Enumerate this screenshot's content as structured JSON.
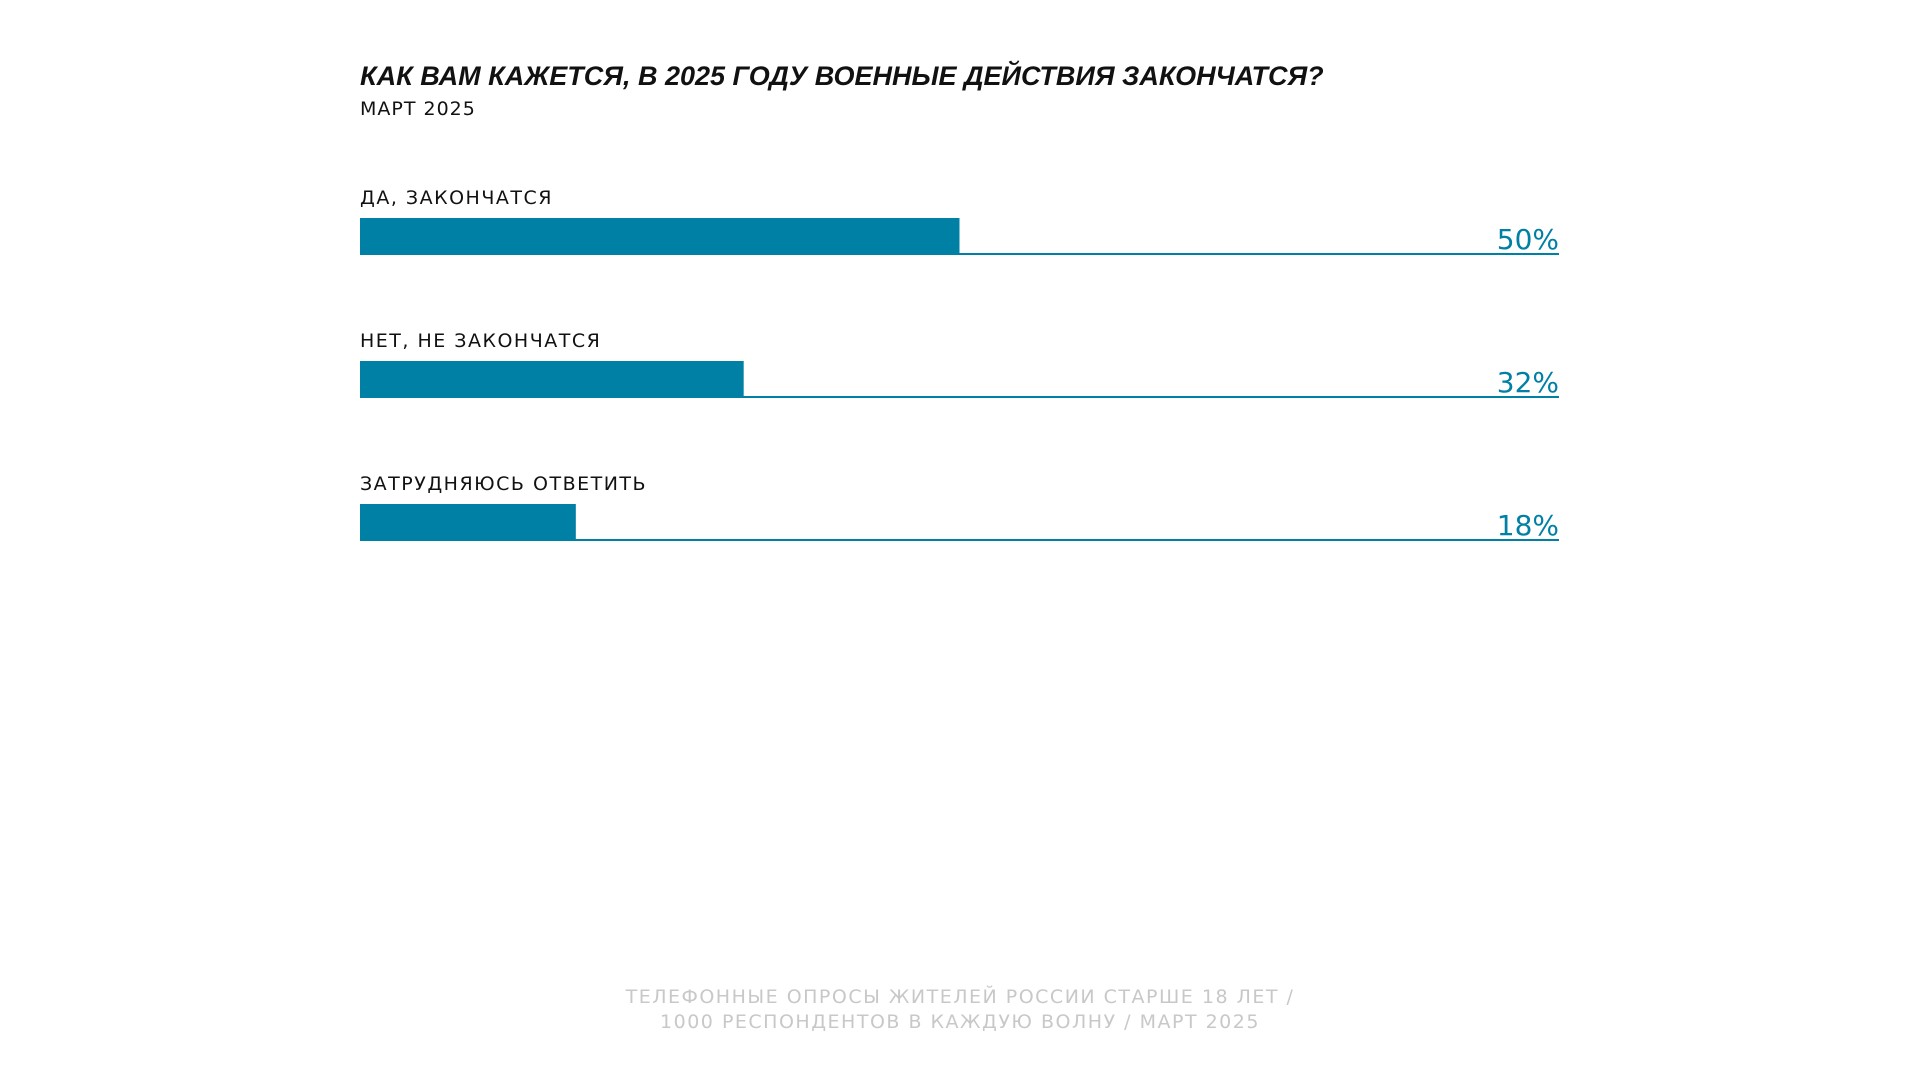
{
  "chart_data": {
    "type": "hbar",
    "title": "КАК ВАМ КАЖЕТСЯ, В 2025 ГОДУ ВОЕННЫЕ ДЕЙСТВИЯ ЗАКОНЧАТСЯ?",
    "subtitle": "МАРТ 2025",
    "categories": [
      "ДА, ЗАКОНЧАТСЯ",
      "НЕТ, НЕ ЗАКОНЧАТСЯ",
      "ЗАТРУДНЯЮСЬ ОТВЕТИТЬ"
    ],
    "values": [
      50,
      32,
      18
    ],
    "value_labels": [
      "50%",
      "32%",
      "18%"
    ],
    "color": "#0080a4",
    "xlim": [
      0,
      100
    ],
    "footer": [
      "ТЕЛЕФОННЫЕ ОПРОСЫ ЖИТЕЛЕЙ РОССИИ СТАРШЕ 18 ЛЕТ /",
      "1000 РЕСПОНДЕНТОВ В КАЖДУЮ ВОЛНУ / МАРТ 2025"
    ]
  }
}
